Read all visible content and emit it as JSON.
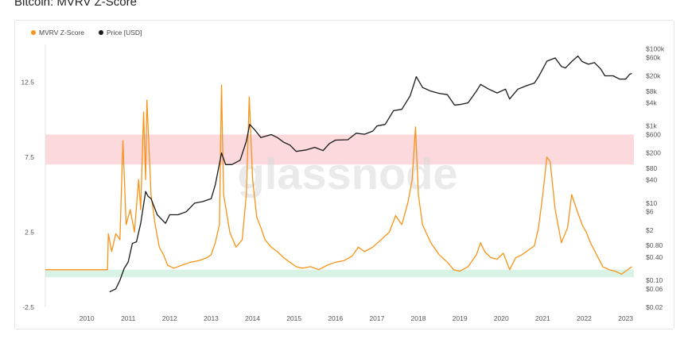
{
  "page_title": "Bitcoin: MVRV Z-Score",
  "colors": {
    "mvrv": "#f7931a",
    "price": "#1a1a1a",
    "red_band": "#fbd9dc",
    "green_band": "#d9f2e6",
    "watermark": "#d9d9d9",
    "grid": "#f0f0f0"
  },
  "watermark": "glassnode",
  "chart_data": {
    "type": "line",
    "title": "Bitcoin: MVRV Z-Score",
    "legend": [
      {
        "name": "MVRV Z-Score",
        "color": "#f7931a"
      },
      {
        "name": "Price [USD]",
        "color": "#1a1a1a"
      }
    ],
    "legend_position": "top-left",
    "x_ticks": [
      "2010",
      "2011",
      "2012",
      "2013",
      "2014",
      "2015",
      "2016",
      "2017",
      "2018",
      "2019",
      "2020",
      "2021",
      "2022",
      "2023"
    ],
    "x_range": [
      2009.0,
      2023.2
    ],
    "left_axis": {
      "ticks": [
        "12.5",
        "7.5",
        "2.5",
        "-2.5"
      ],
      "tick_values": [
        12.5,
        7.5,
        2.5,
        -2.5
      ],
      "ylim": [
        -2.5,
        15.0
      ]
    },
    "right_axis": {
      "scale": "log",
      "ticks": [
        "$100k",
        "$60k",
        "$20k",
        "$8k",
        "$4k",
        "$1k",
        "$600",
        "$200",
        "$80",
        "$40",
        "$10",
        "$6",
        "$2",
        "$0.80",
        "$0.40",
        "$0.10",
        "$0.06",
        "$0.02"
      ],
      "tick_values": [
        100000,
        60000,
        20000,
        8000,
        4000,
        1000,
        600,
        200,
        80,
        40,
        10,
        6,
        2,
        0.8,
        0.4,
        0.1,
        0.06,
        0.02
      ]
    },
    "bands": [
      {
        "name": "red",
        "from": 7.0,
        "to": 9.0
      },
      {
        "name": "green",
        "from": -0.5,
        "to": 0.0
      }
    ],
    "series": [
      {
        "name": "MVRV Z-Score",
        "axis": "left",
        "points": [
          [
            2009.0,
            0.0
          ],
          [
            2010.5,
            0.0
          ],
          [
            2010.52,
            2.4
          ],
          [
            2010.6,
            1.2
          ],
          [
            2010.7,
            2.4
          ],
          [
            2010.8,
            2.0
          ],
          [
            2010.87,
            8.6
          ],
          [
            2010.95,
            3.0
          ],
          [
            2011.05,
            4.0
          ],
          [
            2011.15,
            2.5
          ],
          [
            2011.25,
            6.0
          ],
          [
            2011.3,
            4.0
          ],
          [
            2011.37,
            10.5
          ],
          [
            2011.42,
            6.0
          ],
          [
            2011.45,
            11.3
          ],
          [
            2011.55,
            5.0
          ],
          [
            2011.65,
            3.0
          ],
          [
            2011.75,
            1.5
          ],
          [
            2011.85,
            1.0
          ],
          [
            2011.95,
            0.3
          ],
          [
            2012.1,
            0.1
          ],
          [
            2012.3,
            0.3
          ],
          [
            2012.5,
            0.5
          ],
          [
            2012.7,
            0.6
          ],
          [
            2012.9,
            0.8
          ],
          [
            2013.0,
            1.0
          ],
          [
            2013.1,
            1.8
          ],
          [
            2013.2,
            3.0
          ],
          [
            2013.25,
            12.3
          ],
          [
            2013.3,
            5.0
          ],
          [
            2013.45,
            2.5
          ],
          [
            2013.6,
            1.5
          ],
          [
            2013.75,
            2.0
          ],
          [
            2013.85,
            5.0
          ],
          [
            2013.92,
            11.5
          ],
          [
            2014.0,
            6.0
          ],
          [
            2014.1,
            3.5
          ],
          [
            2014.2,
            2.8
          ],
          [
            2014.3,
            2.0
          ],
          [
            2014.45,
            1.5
          ],
          [
            2014.6,
            1.2
          ],
          [
            2014.75,
            0.8
          ],
          [
            2014.9,
            0.5
          ],
          [
            2015.05,
            0.2
          ],
          [
            2015.2,
            0.1
          ],
          [
            2015.4,
            0.2
          ],
          [
            2015.6,
            0.0
          ],
          [
            2015.8,
            0.3
          ],
          [
            2016.0,
            0.5
          ],
          [
            2016.2,
            0.6
          ],
          [
            2016.4,
            0.9
          ],
          [
            2016.55,
            1.5
          ],
          [
            2016.7,
            1.2
          ],
          [
            2016.9,
            1.5
          ],
          [
            2017.1,
            2.0
          ],
          [
            2017.3,
            2.5
          ],
          [
            2017.45,
            3.6
          ],
          [
            2017.6,
            3.0
          ],
          [
            2017.75,
            4.5
          ],
          [
            2017.85,
            6.0
          ],
          [
            2017.93,
            9.5
          ],
          [
            2018.0,
            5.0
          ],
          [
            2018.1,
            3.0
          ],
          [
            2018.3,
            1.8
          ],
          [
            2018.5,
            1.0
          ],
          [
            2018.7,
            0.5
          ],
          [
            2018.85,
            0.0
          ],
          [
            2019.0,
            -0.1
          ],
          [
            2019.2,
            0.2
          ],
          [
            2019.4,
            1.0
          ],
          [
            2019.5,
            1.8
          ],
          [
            2019.6,
            1.2
          ],
          [
            2019.75,
            0.8
          ],
          [
            2019.9,
            0.7
          ],
          [
            2020.05,
            1.1
          ],
          [
            2020.2,
            0.0
          ],
          [
            2020.35,
            0.8
          ],
          [
            2020.5,
            1.0
          ],
          [
            2020.65,
            1.3
          ],
          [
            2020.8,
            1.6
          ],
          [
            2020.9,
            2.8
          ],
          [
            2021.0,
            5.0
          ],
          [
            2021.1,
            7.5
          ],
          [
            2021.18,
            7.2
          ],
          [
            2021.3,
            4.0
          ],
          [
            2021.45,
            1.8
          ],
          [
            2021.6,
            2.8
          ],
          [
            2021.7,
            5.0
          ],
          [
            2021.82,
            4.0
          ],
          [
            2021.95,
            3.0
          ],
          [
            2022.05,
            2.5
          ],
          [
            2022.15,
            1.8
          ],
          [
            2022.3,
            1.0
          ],
          [
            2022.45,
            0.2
          ],
          [
            2022.6,
            0.0
          ],
          [
            2022.75,
            -0.1
          ],
          [
            2022.9,
            -0.3
          ],
          [
            2023.0,
            -0.1
          ],
          [
            2023.1,
            0.1
          ],
          [
            2023.15,
            0.2
          ]
        ]
      },
      {
        "name": "Price [USD]",
        "axis": "right",
        "points": [
          [
            2010.55,
            0.05
          ],
          [
            2010.7,
            0.06
          ],
          [
            2010.8,
            0.1
          ],
          [
            2010.9,
            0.2
          ],
          [
            2011.0,
            0.3
          ],
          [
            2011.1,
            0.9
          ],
          [
            2011.2,
            1.0
          ],
          [
            2011.3,
            3.0
          ],
          [
            2011.42,
            20
          ],
          [
            2011.48,
            15
          ],
          [
            2011.55,
            13
          ],
          [
            2011.7,
            5
          ],
          [
            2011.9,
            3
          ],
          [
            2012.0,
            5
          ],
          [
            2012.2,
            5
          ],
          [
            2012.4,
            6
          ],
          [
            2012.6,
            10
          ],
          [
            2012.8,
            11
          ],
          [
            2013.0,
            13
          ],
          [
            2013.1,
            30
          ],
          [
            2013.25,
            200
          ],
          [
            2013.35,
            100
          ],
          [
            2013.5,
            100
          ],
          [
            2013.7,
            130
          ],
          [
            2013.85,
            400
          ],
          [
            2013.93,
            1100
          ],
          [
            2014.05,
            800
          ],
          [
            2014.2,
            500
          ],
          [
            2014.45,
            600
          ],
          [
            2014.6,
            500
          ],
          [
            2014.75,
            380
          ],
          [
            2014.9,
            320
          ],
          [
            2015.05,
            220
          ],
          [
            2015.3,
            240
          ],
          [
            2015.5,
            280
          ],
          [
            2015.7,
            230
          ],
          [
            2015.85,
            350
          ],
          [
            2016.0,
            430
          ],
          [
            2016.3,
            440
          ],
          [
            2016.5,
            650
          ],
          [
            2016.7,
            610
          ],
          [
            2016.9,
            740
          ],
          [
            2017.0,
            1000
          ],
          [
            2017.2,
            1100
          ],
          [
            2017.4,
            2500
          ],
          [
            2017.6,
            2700
          ],
          [
            2017.8,
            6000
          ],
          [
            2017.95,
            19000
          ],
          [
            2018.1,
            10000
          ],
          [
            2018.3,
            8000
          ],
          [
            2018.5,
            7000
          ],
          [
            2018.7,
            6500
          ],
          [
            2018.87,
            3500
          ],
          [
            2019.0,
            3600
          ],
          [
            2019.2,
            4000
          ],
          [
            2019.4,
            8000
          ],
          [
            2019.5,
            12000
          ],
          [
            2019.7,
            9000
          ],
          [
            2019.9,
            7200
          ],
          [
            2020.1,
            9000
          ],
          [
            2020.2,
            5000
          ],
          [
            2020.4,
            9000
          ],
          [
            2020.6,
            11000
          ],
          [
            2020.8,
            13000
          ],
          [
            2020.9,
            19000
          ],
          [
            2021.0,
            30000
          ],
          [
            2021.1,
            48000
          ],
          [
            2021.3,
            58000
          ],
          [
            2021.45,
            35000
          ],
          [
            2021.55,
            32000
          ],
          [
            2021.7,
            47000
          ],
          [
            2021.85,
            65000
          ],
          [
            2021.95,
            47000
          ],
          [
            2022.1,
            40000
          ],
          [
            2022.25,
            44000
          ],
          [
            2022.4,
            30000
          ],
          [
            2022.5,
            20000
          ],
          [
            2022.7,
            20000
          ],
          [
            2022.85,
            16500
          ],
          [
            2023.0,
            16500
          ],
          [
            2023.1,
            22000
          ],
          [
            2023.15,
            23000
          ]
        ]
      }
    ]
  },
  "footer": ""
}
